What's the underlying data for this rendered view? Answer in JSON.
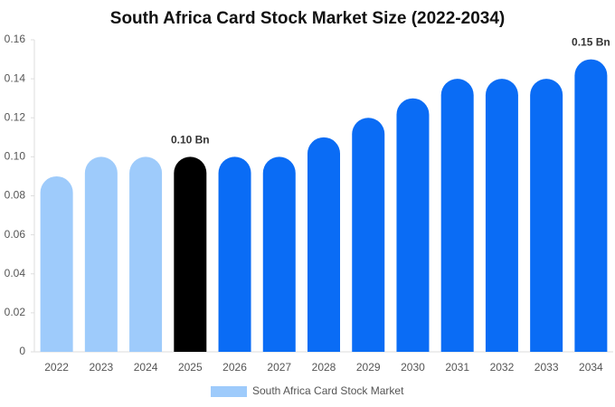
{
  "chart_data": {
    "type": "bar",
    "title": "South Africa Card Stock Market Size (2022-2034)",
    "categories": [
      "2022",
      "2023",
      "2024",
      "2025",
      "2026",
      "2027",
      "2028",
      "2029",
      "2030",
      "2031",
      "2032",
      "2033",
      "2034"
    ],
    "series": [
      {
        "name": "South Africa Card Stock Market",
        "color": "#9ecbfb",
        "colors": [
          "#9ecbfb",
          "#9ecbfb",
          "#9ecbfb",
          "#000000",
          "#0a6cf5",
          "#0a6cf5",
          "#0a6cf5",
          "#0a6cf5",
          "#0a6cf5",
          "#0a6cf5",
          "#0a6cf5",
          "#0a6cf5",
          "#0a6cf5"
        ],
        "values": [
          0.09,
          0.1,
          0.1,
          0.1,
          0.1,
          0.1,
          0.11,
          0.12,
          0.13,
          0.14,
          0.14,
          0.14,
          0.15
        ],
        "value_labels": [
          null,
          null,
          null,
          "0.10 Bn",
          null,
          null,
          null,
          null,
          null,
          null,
          null,
          null,
          "0.15 Bn"
        ]
      }
    ],
    "ylim": [
      0,
      0.16
    ],
    "yticks": [
      0,
      0.02,
      0.04,
      0.06,
      0.08,
      {
        "value": 0.1,
        "label": "0.10"
      },
      0.12,
      0.14,
      0.16
    ],
    "grid": false,
    "legend": "bottom"
  }
}
